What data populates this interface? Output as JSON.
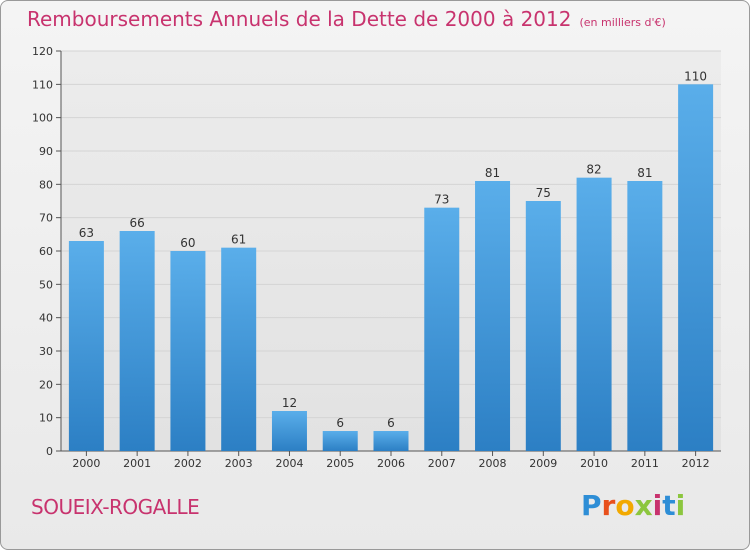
{
  "header": {
    "title": "Remboursements Annuels de la Dette de 2000 à 2012",
    "unit": "(en milliers d'€)"
  },
  "footer": {
    "town": "SOUEIX-ROGALLE",
    "logo": {
      "letters": [
        "P",
        "r",
        "o",
        "x",
        "i",
        "t",
        "i"
      ],
      "colors": [
        "#2e8ed6",
        "#e8501c",
        "#f2a900",
        "#8cc63e",
        "#c8336e",
        "#2e8ed6",
        "#8cc63e"
      ]
    }
  },
  "chart_data": {
    "type": "bar",
    "categories": [
      "2000",
      "2001",
      "2002",
      "2003",
      "2004",
      "2005",
      "2006",
      "2007",
      "2008",
      "2009",
      "2010",
      "2011",
      "2012"
    ],
    "values": [
      63,
      66,
      60,
      61,
      12,
      6,
      6,
      73,
      81,
      75,
      82,
      81,
      110
    ],
    "title": "Remboursements Annuels de la Dette de 2000 à 2012",
    "subtitle": "(en milliers d'€)",
    "xlabel": "",
    "ylabel": "",
    "ylim": [
      0,
      120
    ],
    "yticks": [
      0,
      10,
      20,
      30,
      40,
      50,
      60,
      70,
      80,
      90,
      100,
      110,
      120
    ],
    "grid": true,
    "legend": "none",
    "colors": {
      "bar_light": "#5aaeea",
      "bar_dark": "#2c7fc4",
      "grid": "#d4d4d4",
      "axis": "#555555",
      "title": "#c8336e"
    }
  }
}
